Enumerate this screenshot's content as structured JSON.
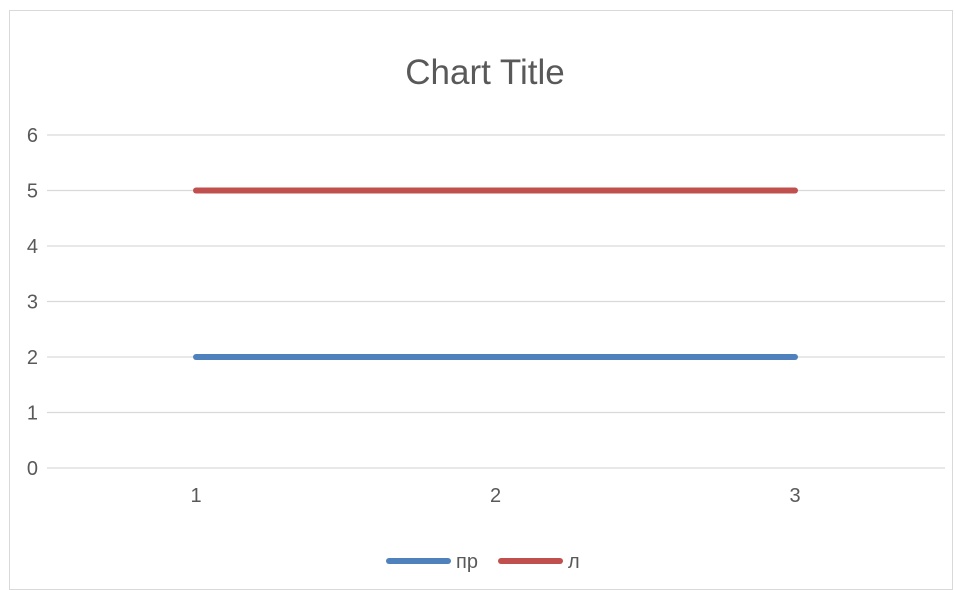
{
  "chart_data": {
    "type": "line",
    "title": "Chart Title",
    "xlabel": "",
    "ylabel": "",
    "x": [
      1,
      2,
      3
    ],
    "ylim": [
      0,
      6
    ],
    "yticks": [
      0,
      1,
      2,
      3,
      4,
      5,
      6
    ],
    "grid": true,
    "legend_position": "bottom",
    "series": [
      {
        "name": "пр",
        "values": [
          2,
          2,
          2
        ],
        "color": "#4F81BD"
      },
      {
        "name": "л",
        "values": [
          5,
          5,
          5
        ],
        "color": "#C0504D"
      }
    ]
  }
}
